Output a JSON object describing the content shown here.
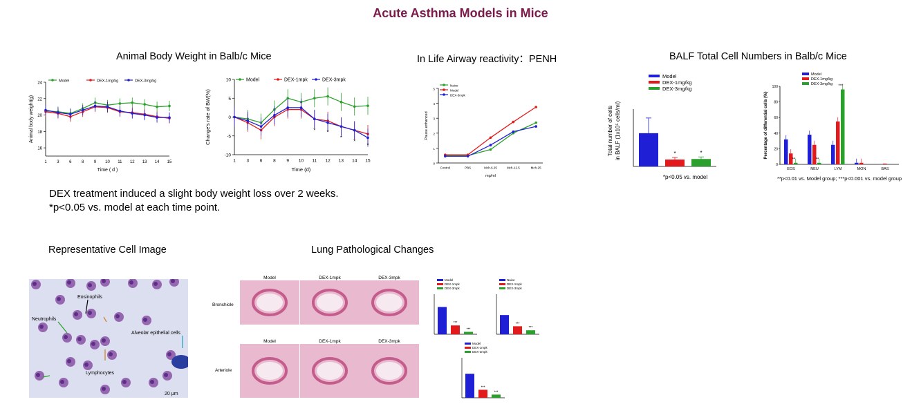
{
  "page_title": "Acute Asthma Models in Mice",
  "sections": {
    "body_weight": "Animal Body Weight in Balb/c Mice",
    "penh": "In Life Airway reactivity：PENH",
    "balf": "BALF Total Cell Numbers in Balb/c Mice",
    "cell_image": "Representative Cell Image",
    "lung": "Lung Pathological Changes"
  },
  "note": "DEX treatment induced a slight body weight loss over 2 weeks. *p<0.05 vs. model at each time point.",
  "colors": {
    "model": "#2ca02c",
    "dex1": "#e31a1c",
    "dex3": "#1f1fd6",
    "title": "#7b1a4b"
  },
  "chart_data": [
    {
      "type": "line",
      "ylabel": "Animal body weight(g)",
      "xlabel": "Time ( d )",
      "x": [
        "1",
        "3",
        "6",
        "8",
        "9",
        "10",
        "11",
        "12",
        "13",
        "14",
        "15"
      ],
      "ylim": [
        15,
        24
      ],
      "yticks": [
        "16",
        "18",
        "20",
        "22",
        "24"
      ],
      "series": [
        {
          "name": "Model",
          "color": "#2ca02c",
          "values": [
            20.5,
            20.4,
            20.2,
            20.8,
            21.5,
            21.2,
            21.4,
            21.5,
            21.3,
            21.0,
            21.1
          ]
        },
        {
          "name": "DEX-1mg/kg",
          "color": "#e31a1c",
          "values": [
            20.4,
            20.2,
            19.8,
            20.4,
            21.0,
            20.9,
            20.4,
            20.3,
            20.1,
            19.8,
            19.6
          ]
        },
        {
          "name": "DEX-3mg/kg",
          "color": "#1f1fd6",
          "values": [
            20.6,
            20.3,
            20.1,
            20.6,
            21.1,
            21.0,
            20.5,
            20.2,
            20.0,
            19.7,
            19.7
          ]
        }
      ]
    },
    {
      "type": "line",
      "ylabel": "Change's rate of BW(%)",
      "xlabel": "Time (d)",
      "x": [
        "1",
        "3",
        "6",
        "8",
        "9",
        "10",
        "11",
        "12",
        "13",
        "14",
        "15"
      ],
      "ylim": [
        -10,
        10
      ],
      "yticks": [
        "-10",
        "-5",
        "0",
        "5",
        "10"
      ],
      "series": [
        {
          "name": "Model",
          "color": "#2ca02c",
          "values": [
            0,
            -0.5,
            -1.5,
            2,
            5,
            4,
            5,
            5.5,
            4,
            2.8,
            3
          ]
        },
        {
          "name": "DEX-1mpk",
          "color": "#e31a1c",
          "values": [
            0,
            -1.5,
            -3.5,
            0,
            2,
            2,
            -0.5,
            -1,
            -2.5,
            -3.5,
            -4.5
          ]
        },
        {
          "name": "DEX-3mpk",
          "color": "#1f1fd6",
          "values": [
            0,
            -1,
            -2.5,
            0.5,
            2.5,
            2.5,
            -0.5,
            -1.5,
            -2.5,
            -3.5,
            -5.5
          ]
        }
      ],
      "annotations": [
        "*",
        "*",
        "*",
        "*",
        "*"
      ]
    },
    {
      "type": "line",
      "ylabel": "Pause enhanced",
      "xlabel": "mg/ml",
      "x": [
        "Control",
        "PBS",
        "Mch-6.25",
        "Mch-12.5",
        "Mch-25"
      ],
      "ylim": [
        0,
        5
      ],
      "yticks": [
        "0",
        "1",
        "2",
        "3",
        "4",
        "5"
      ],
      "series": [
        {
          "name": "Naive",
          "color": "#2ca02c",
          "values": [
            0.5,
            0.5,
            0.9,
            2.0,
            2.7
          ]
        },
        {
          "name": "Model",
          "color": "#e31a1c",
          "values": [
            0.55,
            0.55,
            1.7,
            2.75,
            3.75
          ]
        },
        {
          "name": "DEX-3mpk",
          "color": "#1f1fd6",
          "values": [
            0.45,
            0.45,
            1.2,
            2.1,
            2.45
          ]
        }
      ]
    },
    {
      "type": "bar",
      "ylabel": "Total number of cells in BALF (1x10⁵ cells/ml)",
      "categories": [
        "Model",
        "DEX-1mg/kg",
        "DEX-3mg/kg"
      ],
      "values": [
        58,
        12,
        13
      ],
      "ylim": [
        0,
        100
      ],
      "annotations": [
        "",
        "*",
        "*"
      ],
      "footnote": "*p<0.05 vs. model"
    },
    {
      "type": "bar",
      "ylabel": "Percentage of differential cells (%)",
      "categories": [
        "EOS",
        "NEU",
        "LYM",
        "MON",
        "BAS"
      ],
      "yticks": [
        "0",
        "20",
        "40",
        "60",
        "80",
        "100"
      ],
      "ylim": [
        0,
        100
      ],
      "series": [
        {
          "name": "Model",
          "color": "#1f1fd6",
          "values": [
            32,
            38,
            25,
            2,
            0
          ]
        },
        {
          "name": "DEX-1mg/kg",
          "color": "#e31a1c",
          "values": [
            14,
            25,
            55,
            2,
            1
          ]
        },
        {
          "name": "DEX-3mg/kg",
          "color": "#2ca02c",
          "values": [
            2,
            2,
            96,
            0,
            0
          ]
        }
      ],
      "footnote": "**p<0.01 vs. Model group; ***p<0.001 vs. model group"
    }
  ],
  "histology": {
    "cell_labels": [
      "Eosinophils",
      "Neutrophils",
      "Alveolar epithelial cells",
      "Lymphocytes",
      "20 μm"
    ],
    "col_labels": [
      "Model",
      "DEX-1mpk",
      "DEX-3mpk"
    ],
    "col_labels_row2": [
      "Model",
      "DEX-1mpk",
      "DEX-3mpk"
    ],
    "row_labels": [
      "Bronchiole",
      "Arteriole"
    ],
    "mini_legend": [
      "Model",
      "DEX-1mpk",
      "DEX-3mpk"
    ],
    "mini_legend_b": [
      "Naive",
      "DEX-1mpk",
      "DEX-3mpk"
    ],
    "mini_sig": [
      "***",
      "***"
    ]
  }
}
